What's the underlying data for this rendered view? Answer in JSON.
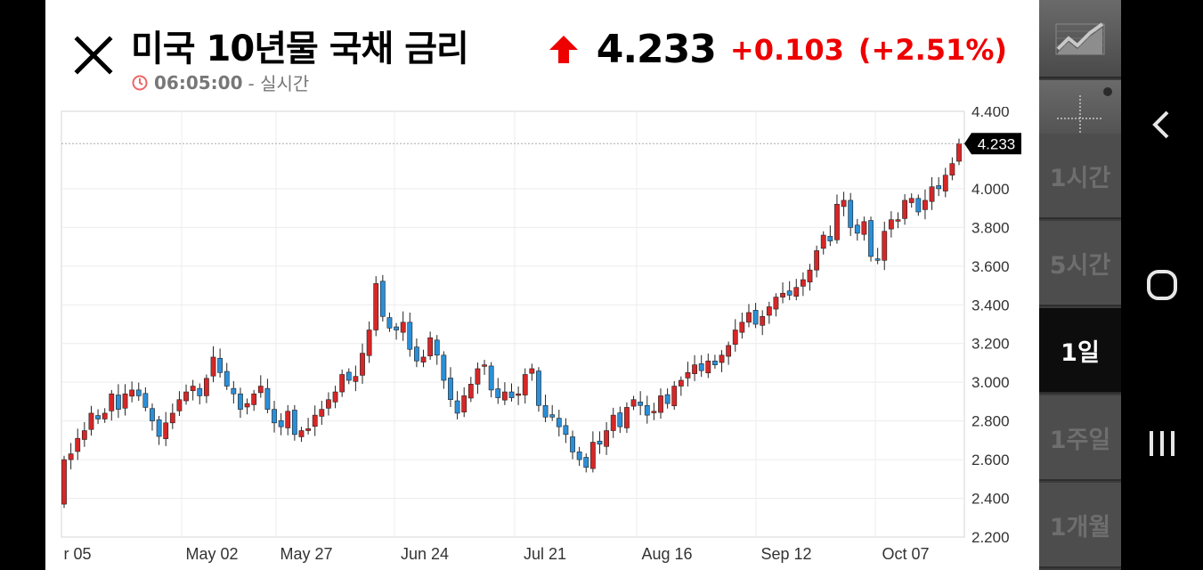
{
  "header": {
    "title": "미국 10년물 국채 금리",
    "time": "06:05:00",
    "time_suffix": "- 실시간"
  },
  "quote": {
    "price": "4.233",
    "change": "+0.103",
    "change_pct": "(+2.51%)",
    "direction": "up",
    "up_color": "#e60000"
  },
  "toolbar": {
    "chart_icon": "line-chart-icon",
    "crosshair_icon": "crosshair-icon",
    "periods": [
      "1시간",
      "5시간",
      "1일",
      "1주일",
      "1개월"
    ],
    "active_period": "1일"
  },
  "nav": {
    "back_icon": "chevron-left-icon",
    "home_icon": "home-circle-icon",
    "recents_icon": "recents-icon"
  },
  "chart_data": {
    "type": "candlestick",
    "title": "",
    "xlabel": "",
    "ylabel": "",
    "ylim": [
      2.2,
      4.4
    ],
    "y_ticks": [
      "4.400",
      "4.000",
      "3.800",
      "3.600",
      "3.400",
      "3.200",
      "3.000",
      "2.800",
      "2.600",
      "2.400",
      "2.200"
    ],
    "x_ticks": [
      "r 05",
      "May 02",
      "May 27",
      "Jun 24",
      "Jul 21",
      "Aug 16",
      "Sep 12",
      "Oct 07"
    ],
    "current_value_label": "4.233",
    "up_color": "#d62728",
    "down_color": "#2b8fd8",
    "grid": true,
    "close": [
      2.6,
      2.63,
      2.71,
      2.75,
      2.84,
      2.81,
      2.84,
      2.94,
      2.86,
      2.94,
      2.96,
      2.93,
      2.87,
      2.8,
      2.72,
      2.79,
      2.84,
      2.91,
      2.95,
      2.98,
      2.93,
      3.02,
      3.13,
      3.05,
      2.98,
      2.94,
      2.86,
      2.89,
      2.94,
      2.98,
      2.86,
      2.79,
      2.77,
      2.85,
      2.73,
      2.75,
      2.76,
      2.83,
      2.86,
      2.91,
      2.95,
      3.04,
      3.01,
      3.03,
      3.15,
      3.27,
      3.51,
      3.34,
      3.28,
      3.27,
      3.31,
      3.17,
      3.11,
      3.13,
      3.23,
      3.14,
      3.01,
      2.91,
      2.84,
      2.93,
      2.99,
      3.07,
      3.09,
      2.96,
      2.92,
      2.95,
      2.92,
      2.94,
      3.04,
      3.07,
      2.88,
      2.82,
      2.82,
      2.77,
      2.73,
      2.64,
      2.6,
      2.56,
      2.69,
      2.68,
      2.75,
      2.83,
      2.77,
      2.87,
      2.91,
      2.88,
      2.83,
      2.85,
      2.93,
      2.89,
      2.98,
      3.01,
      3.05,
      3.09,
      3.06,
      3.11,
      3.09,
      3.14,
      3.19,
      3.27,
      3.31,
      3.36,
      3.3,
      3.34,
      3.39,
      3.44,
      3.46,
      3.45,
      3.49,
      3.53,
      3.58,
      3.68,
      3.76,
      3.73,
      3.92,
      3.94,
      3.8,
      3.77,
      3.83,
      3.65,
      3.63,
      3.78,
      3.84,
      3.84,
      3.94,
      3.95,
      3.88,
      3.94,
      4.01,
      4.0,
      4.07,
      4.13,
      4.233
    ]
  }
}
